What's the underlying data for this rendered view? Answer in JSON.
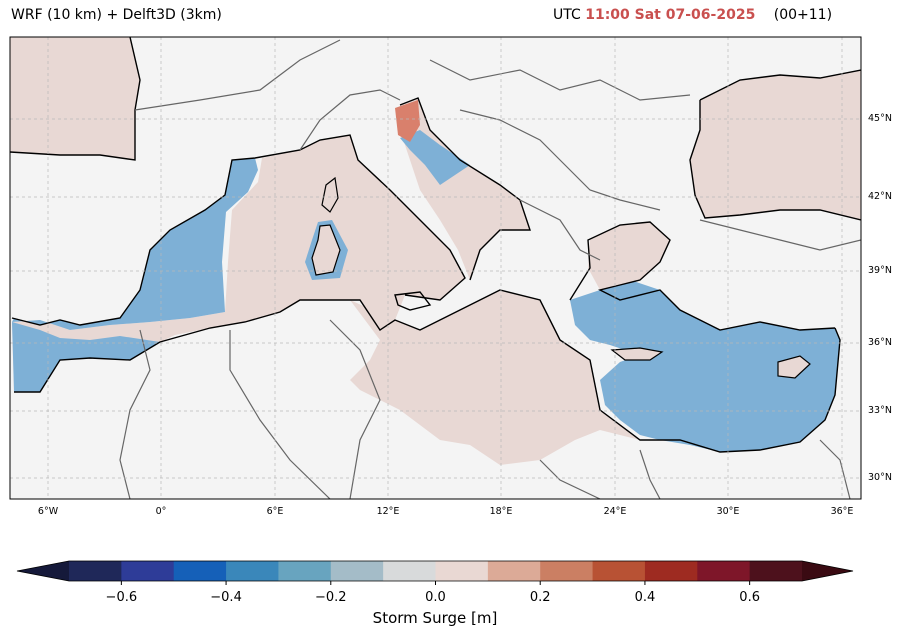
{
  "header": {
    "model_title": "WRF (10 km) + Delft3D (3km)",
    "utc_label": "UTC",
    "valid_time": "11:00 Sat 07-06-2025",
    "forecast_step": "(00+11)"
  },
  "map": {
    "region": "Mediterranean Sea",
    "lat_ticks": [
      "45°N",
      "42°N",
      "39°N",
      "36°N",
      "33°N",
      "30°N"
    ],
    "lon_ticks": [
      "6°W",
      "0°",
      "6°E",
      "12°E",
      "18°E",
      "24°E",
      "30°E",
      "36°E"
    ],
    "colors": {
      "land": "#e8d8d4",
      "background": "#f4f4f4",
      "sea_surge": "#7eb0d6",
      "positive_surge": "#d9806c",
      "coastline": "#000000",
      "borders": "#666666",
      "grid": "#b8b8b8"
    }
  },
  "colorbar": {
    "label": "Storm Surge [m]",
    "ticks": [
      "−0.6",
      "−0.4",
      "−0.2",
      "0.0",
      "0.2",
      "0.4",
      "0.6"
    ],
    "tick_values": [
      -0.6,
      -0.4,
      -0.2,
      0.0,
      0.2,
      0.4,
      0.6
    ],
    "bounds": [
      -0.7,
      0.7
    ],
    "extend": "both",
    "colors": [
      "#1f2859",
      "#2e3c98",
      "#1560b8",
      "#3a87ba",
      "#68a4bf",
      "#a4bcc8",
      "#d8dadb",
      "#e9d8d3",
      "#dcaa97",
      "#cb7f63",
      "#b85234",
      "#9e2b21",
      "#7e1629",
      "#4d111c"
    ],
    "under_color": "#15193a",
    "over_color": "#3a0a12"
  }
}
